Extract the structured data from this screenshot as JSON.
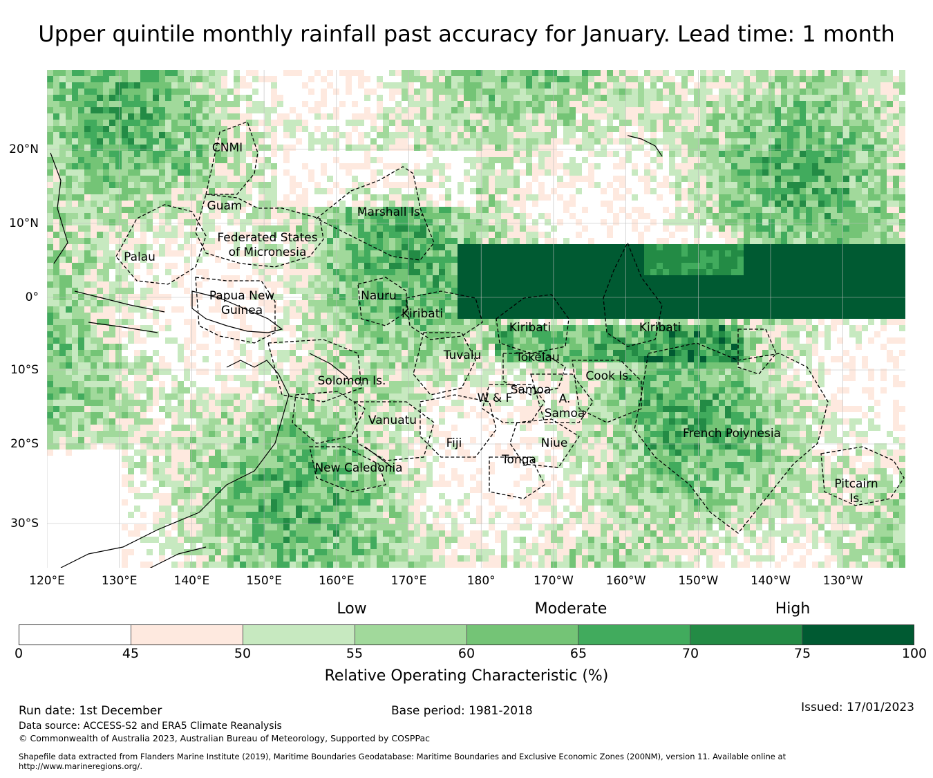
{
  "title": "Upper quintile monthly rainfall past accuracy for January. Lead time: 1 month",
  "map": {
    "lon_ticks": [
      "120°E",
      "130°E",
      "140°E",
      "150°E",
      "160°E",
      "170°E",
      "180°",
      "170°W",
      "160°W",
      "150°W",
      "140°W",
      "130°W"
    ],
    "lat_ticks": [
      "20°N",
      "10°N",
      "0°",
      "10°S",
      "20°S",
      "30°S"
    ],
    "region_labels": [
      {
        "id": "cnmi",
        "lines": [
          "CNMI"
        ]
      },
      {
        "id": "guam",
        "lines": [
          "Guam"
        ]
      },
      {
        "id": "marshall",
        "lines": [
          "Marshall Is."
        ]
      },
      {
        "id": "fsm",
        "lines": [
          "Federated States",
          "of Micronesia"
        ]
      },
      {
        "id": "palau",
        "lines": [
          "Palau"
        ]
      },
      {
        "id": "png",
        "lines": [
          "Papua New",
          "Guinea"
        ]
      },
      {
        "id": "nauru",
        "lines": [
          "Nauru"
        ]
      },
      {
        "id": "kiribati-w",
        "lines": [
          "Kiribati"
        ]
      },
      {
        "id": "kiribati-c",
        "lines": [
          "Kiribati"
        ]
      },
      {
        "id": "kiribati-e",
        "lines": [
          "Kiribati"
        ]
      },
      {
        "id": "tuvalu",
        "lines": [
          "Tuvalu"
        ]
      },
      {
        "id": "tokelau",
        "lines": [
          "Tokelau"
        ]
      },
      {
        "id": "cook",
        "lines": [
          "Cook Is."
        ]
      },
      {
        "id": "solomon",
        "lines": [
          "Solomon Is."
        ]
      },
      {
        "id": "wf",
        "lines": [
          "W & F"
        ]
      },
      {
        "id": "samoa",
        "lines": [
          "Samoa"
        ]
      },
      {
        "id": "asamoa",
        "lines": [
          "A.",
          "Samoa"
        ]
      },
      {
        "id": "vanuatu",
        "lines": [
          "Vanuatu"
        ]
      },
      {
        "id": "fiji",
        "lines": [
          "Fiji"
        ]
      },
      {
        "id": "niue",
        "lines": [
          "Niue"
        ]
      },
      {
        "id": "tonga",
        "lines": [
          "Tonga"
        ]
      },
      {
        "id": "frenchpoly",
        "lines": [
          "French Polynesia"
        ]
      },
      {
        "id": "newcal",
        "lines": [
          "New Caledonia"
        ]
      },
      {
        "id": "pitcairn",
        "lines": [
          "Pitcairn",
          "Is."
        ]
      }
    ]
  },
  "colorbar": {
    "categories": [
      "Low",
      "Moderate",
      "High"
    ],
    "ticks": [
      "0",
      "45",
      "50",
      "55",
      "60",
      "65",
      "70",
      "75",
      "100"
    ],
    "bounds": [
      0,
      45,
      50,
      55,
      60,
      65,
      70,
      75,
      100
    ],
    "colors": [
      "#ffffff",
      "#fee9df",
      "#c7e9c0",
      "#a1d99b",
      "#74c476",
      "#41ab5d",
      "#238b45",
      "#005a32"
    ],
    "label": "Relative Operating Characteristic (%)"
  },
  "footer": {
    "run_date": "Run date: 1st December",
    "base_period": "Base period: 1981-2018",
    "issued": "Issued: 17/01/2023",
    "data_source": "Data source: ACCESS-S2 and ERA5 Climate Reanalysis",
    "copyright": "© Commonwealth of Australia 2023, Australian Bureau of Meteorology, Supported by COSPPac",
    "shapefile_1": "Shapefile data extracted from Flanders Marine Institute (2019), Maritime Boundaries Geodatabase: Maritime Boundaries and Exclusive Economic Zones (200NM), version 11. Available online at",
    "shapefile_2": "http://www.marineregions.org/."
  }
}
